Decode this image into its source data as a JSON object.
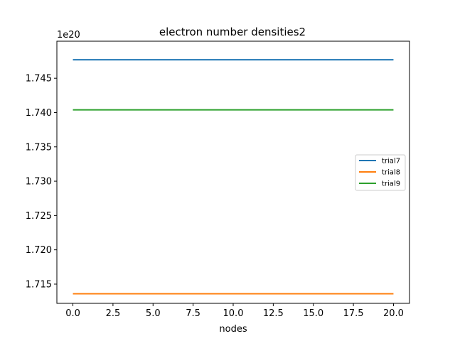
{
  "chart_data": {
    "type": "line",
    "title": "electron number densities2",
    "xlabel": "nodes",
    "ylabel": "",
    "y_offset_label": "1e20",
    "x_ticks": [
      "0.0",
      "2.5",
      "5.0",
      "7.5",
      "10.0",
      "12.5",
      "15.0",
      "17.5",
      "20.0"
    ],
    "x_tick_values": [
      0,
      2.5,
      5,
      7.5,
      10,
      12.5,
      15,
      17.5,
      20
    ],
    "y_ticks": [
      "1.715",
      "1.720",
      "1.725",
      "1.730",
      "1.735",
      "1.740",
      "1.745"
    ],
    "y_tick_values": [
      1.715,
      1.72,
      1.725,
      1.73,
      1.735,
      1.74,
      1.745
    ],
    "xlim": [
      -1,
      21
    ],
    "ylim": [
      1.7122,
      1.7504
    ],
    "grid": false,
    "legend_position": "center-right",
    "series": [
      {
        "name": "trial7",
        "color": "#1f77b4",
        "x": [
          0,
          20
        ],
        "y": [
          1.7477,
          1.7477
        ]
      },
      {
        "name": "trial8",
        "color": "#ff7f0e",
        "x": [
          0,
          20
        ],
        "y": [
          1.7136,
          1.7136
        ]
      },
      {
        "name": "trial9",
        "color": "#2ca02c",
        "x": [
          0,
          20
        ],
        "y": [
          1.7404,
          1.7404
        ]
      }
    ]
  }
}
